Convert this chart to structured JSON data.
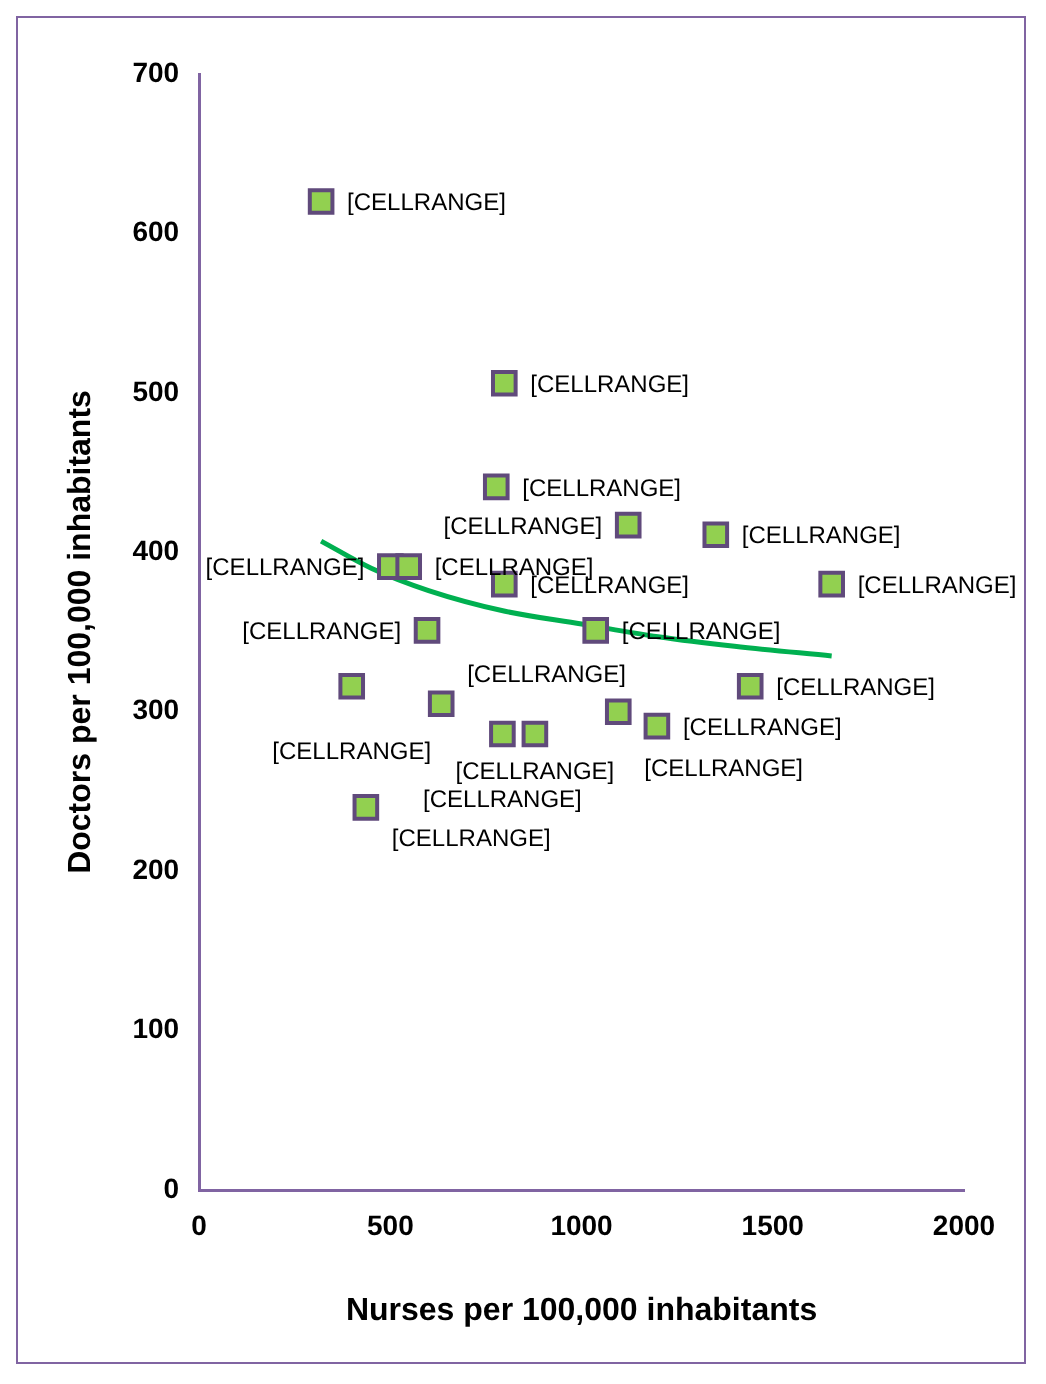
{
  "chart_data": {
    "type": "scatter",
    "xlabel": "Nurses per 100,000 inhabitants",
    "ylabel": "Doctors per 100,000 inhabitants",
    "xlim": [
      0,
      2000
    ],
    "xticks": [
      0,
      500,
      1000,
      1500,
      2000
    ],
    "ylim": [
      0,
      700
    ],
    "yticks": [
      0,
      100,
      200,
      300,
      400,
      500,
      600,
      700
    ],
    "grid": false,
    "legend": false,
    "marker": "square",
    "series": [
      {
        "color": "#92d050",
        "x": [
          319,
          798,
          777,
          1122,
          1351,
          500,
          548,
          798,
          1654,
          596,
          1037,
          399,
          633,
          1096,
          1197,
          793,
          878,
          1441,
          436
        ],
        "values": [
          620,
          506,
          441,
          417,
          411,
          391,
          391,
          380,
          380,
          351,
          351,
          316,
          305,
          300,
          291,
          286,
          286,
          316,
          240
        ],
        "value_labels": [
          "[CELLRANGE]",
          "[CELLRANGE]",
          "[CELLRANGE]",
          "[CELLRANGE]",
          "[CELLRANGE]",
          "[CELLRANGE]",
          "[CELLRANGE]",
          "[CELLRANGE]",
          "[CELLRANGE]",
          "[CELLRANGE]",
          "[CELLRANGE]",
          "[CELLRANGE]",
          "[CELLRANGE]",
          "[CELLRANGE]",
          "[CELLRANGE]",
          "[CELLRANGE]",
          "[CELLRANGE]",
          "[CELLRANGE]",
          "[CELLRANGE]"
        ]
      },
      {
        "type": "line",
        "marker": "none",
        "color": "#00b050",
        "x": [
          319,
          450,
          600,
          800,
          1000,
          1200,
          1400,
          1654
        ],
        "values": [
          407,
          390,
          376,
          363,
          355,
          347,
          341,
          335
        ]
      }
    ]
  }
}
